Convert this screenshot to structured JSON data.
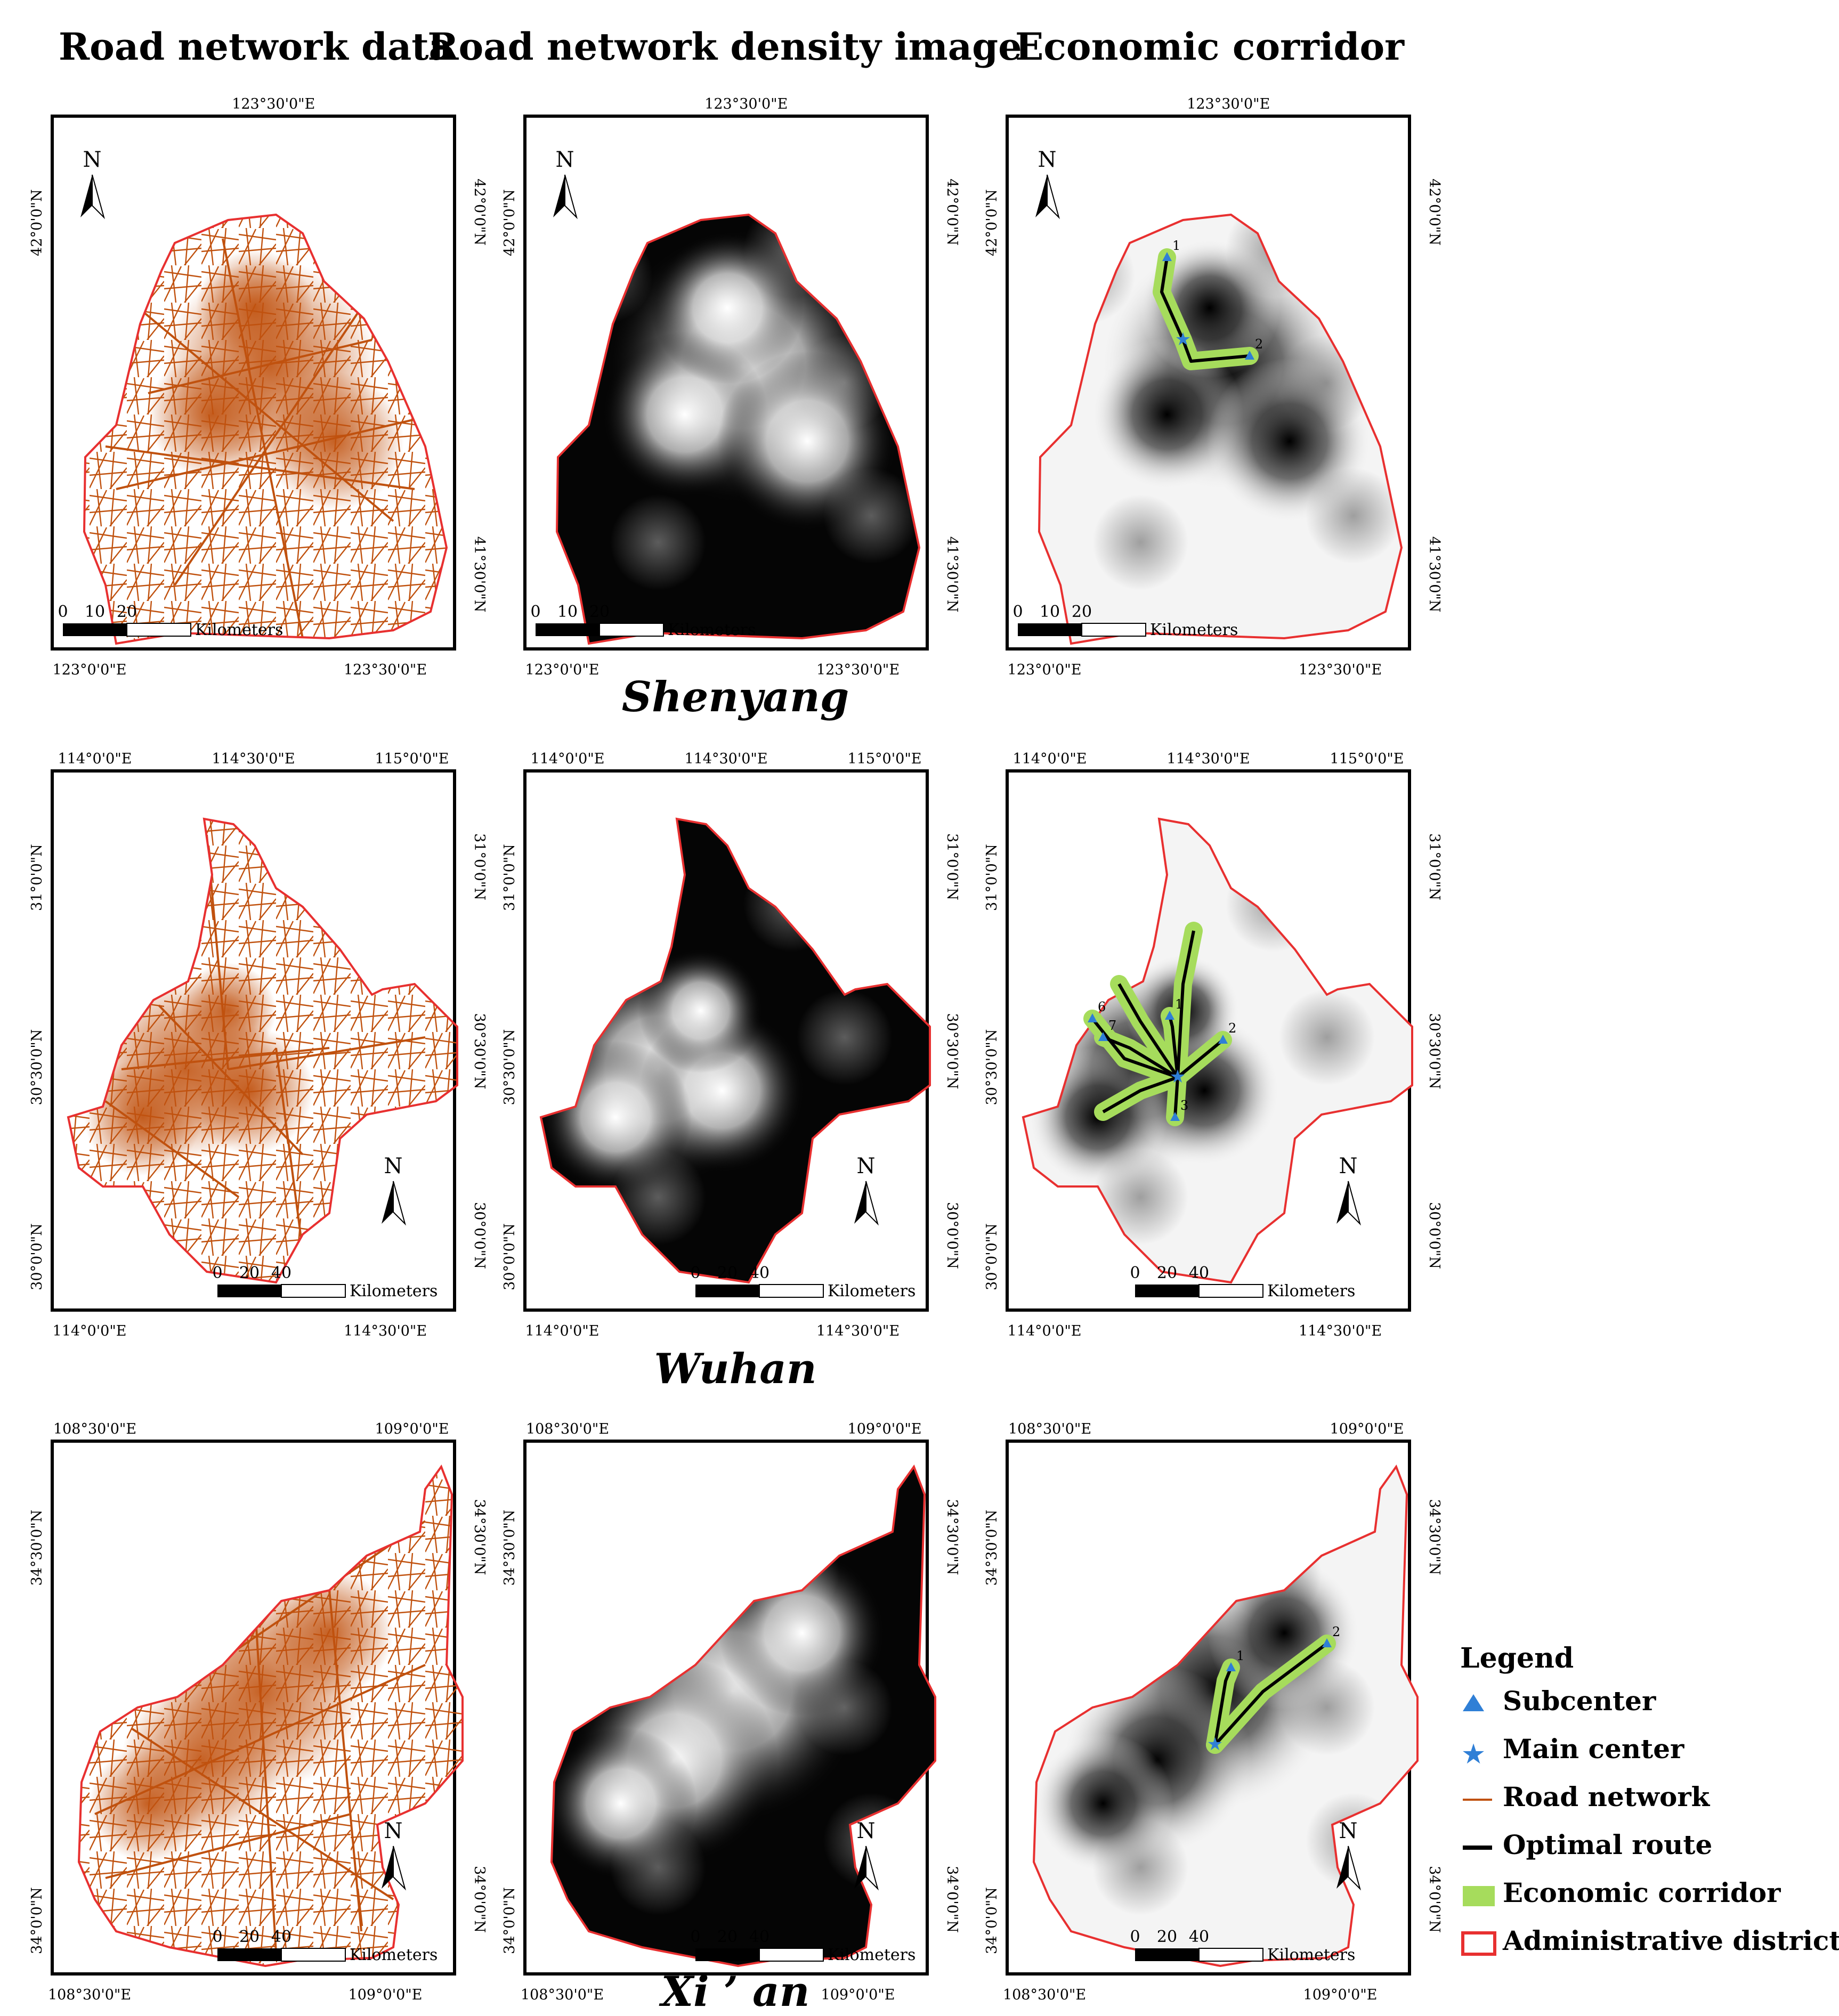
{
  "column_titles": [
    "Road network data",
    "Road network density image",
    "Economic corridor"
  ],
  "cities": [
    {
      "name": "Shenyang",
      "top_ticks": [
        "123°30'0\"E"
      ],
      "bottom_ticks": [
        "123°0'0\"E",
        "123°30'0\"E"
      ],
      "left_ticks": [
        "42°0'0\"N"
      ],
      "right_ticks": [
        "42°0'0\"N",
        "41°30'0\"N"
      ],
      "scale": {
        "ticks": [
          "0",
          "10",
          "20"
        ],
        "unit": "Kilometers"
      },
      "north": "N",
      "corridor_labels": [
        "1",
        "2"
      ]
    },
    {
      "name": "Wuhan",
      "top_ticks": [
        "114°0'0\"E",
        "114°30'0\"E",
        "115°0'0\"E"
      ],
      "bottom_ticks": [
        "114°0'0\"E",
        "114°30'0\"E"
      ],
      "left_ticks": [
        "31°0'0\"N",
        "30°30'0\"N",
        "30°0'0\"N"
      ],
      "right_ticks": [
        "31°0'0\"N",
        "30°30'0\"N",
        "30°0'0\"N"
      ],
      "scale": {
        "ticks": [
          "0",
          "20",
          "40"
        ],
        "unit": "Kilometers"
      },
      "north": "N",
      "corridor_labels": [
        "1",
        "2",
        "3",
        "6",
        "7"
      ]
    },
    {
      "name": "Xi ’ an",
      "top_ticks": [
        "108°30'0\"E",
        "109°0'0\"E"
      ],
      "bottom_ticks": [
        "108°30'0\"E",
        "109°0'0\"E"
      ],
      "left_ticks": [
        "34°30'0\"N",
        "34°0'0\"N"
      ],
      "right_ticks": [
        "34°30'0\"N",
        "34°0'0\"N"
      ],
      "scale": {
        "ticks": [
          "0",
          "20",
          "40"
        ],
        "unit": "Kilometers"
      },
      "north": "N",
      "corridor_labels": [
        "1",
        "2"
      ]
    }
  ],
  "legend": {
    "title": "Legend",
    "items": [
      {
        "label": "Subcenter",
        "symbol": "triangle",
        "color": "#2f7fd6"
      },
      {
        "label": "Main center",
        "symbol": "star",
        "color": "#2f7fd6"
      },
      {
        "label": "Road network",
        "symbol": "line",
        "color": "#c0510e"
      },
      {
        "label": "Optimal route",
        "symbol": "line",
        "color": "#000000"
      },
      {
        "label": "Economic corridor",
        "symbol": "fill",
        "color": "#a6dc5c"
      },
      {
        "label": "Administrative district",
        "symbol": "outline",
        "color": "#e83030"
      }
    ]
  },
  "colors": {
    "road": "#c0510e",
    "boundary": "#e83030",
    "corridor": "#a6dc5c",
    "route": "#000000",
    "center": "#2f7fd6"
  }
}
